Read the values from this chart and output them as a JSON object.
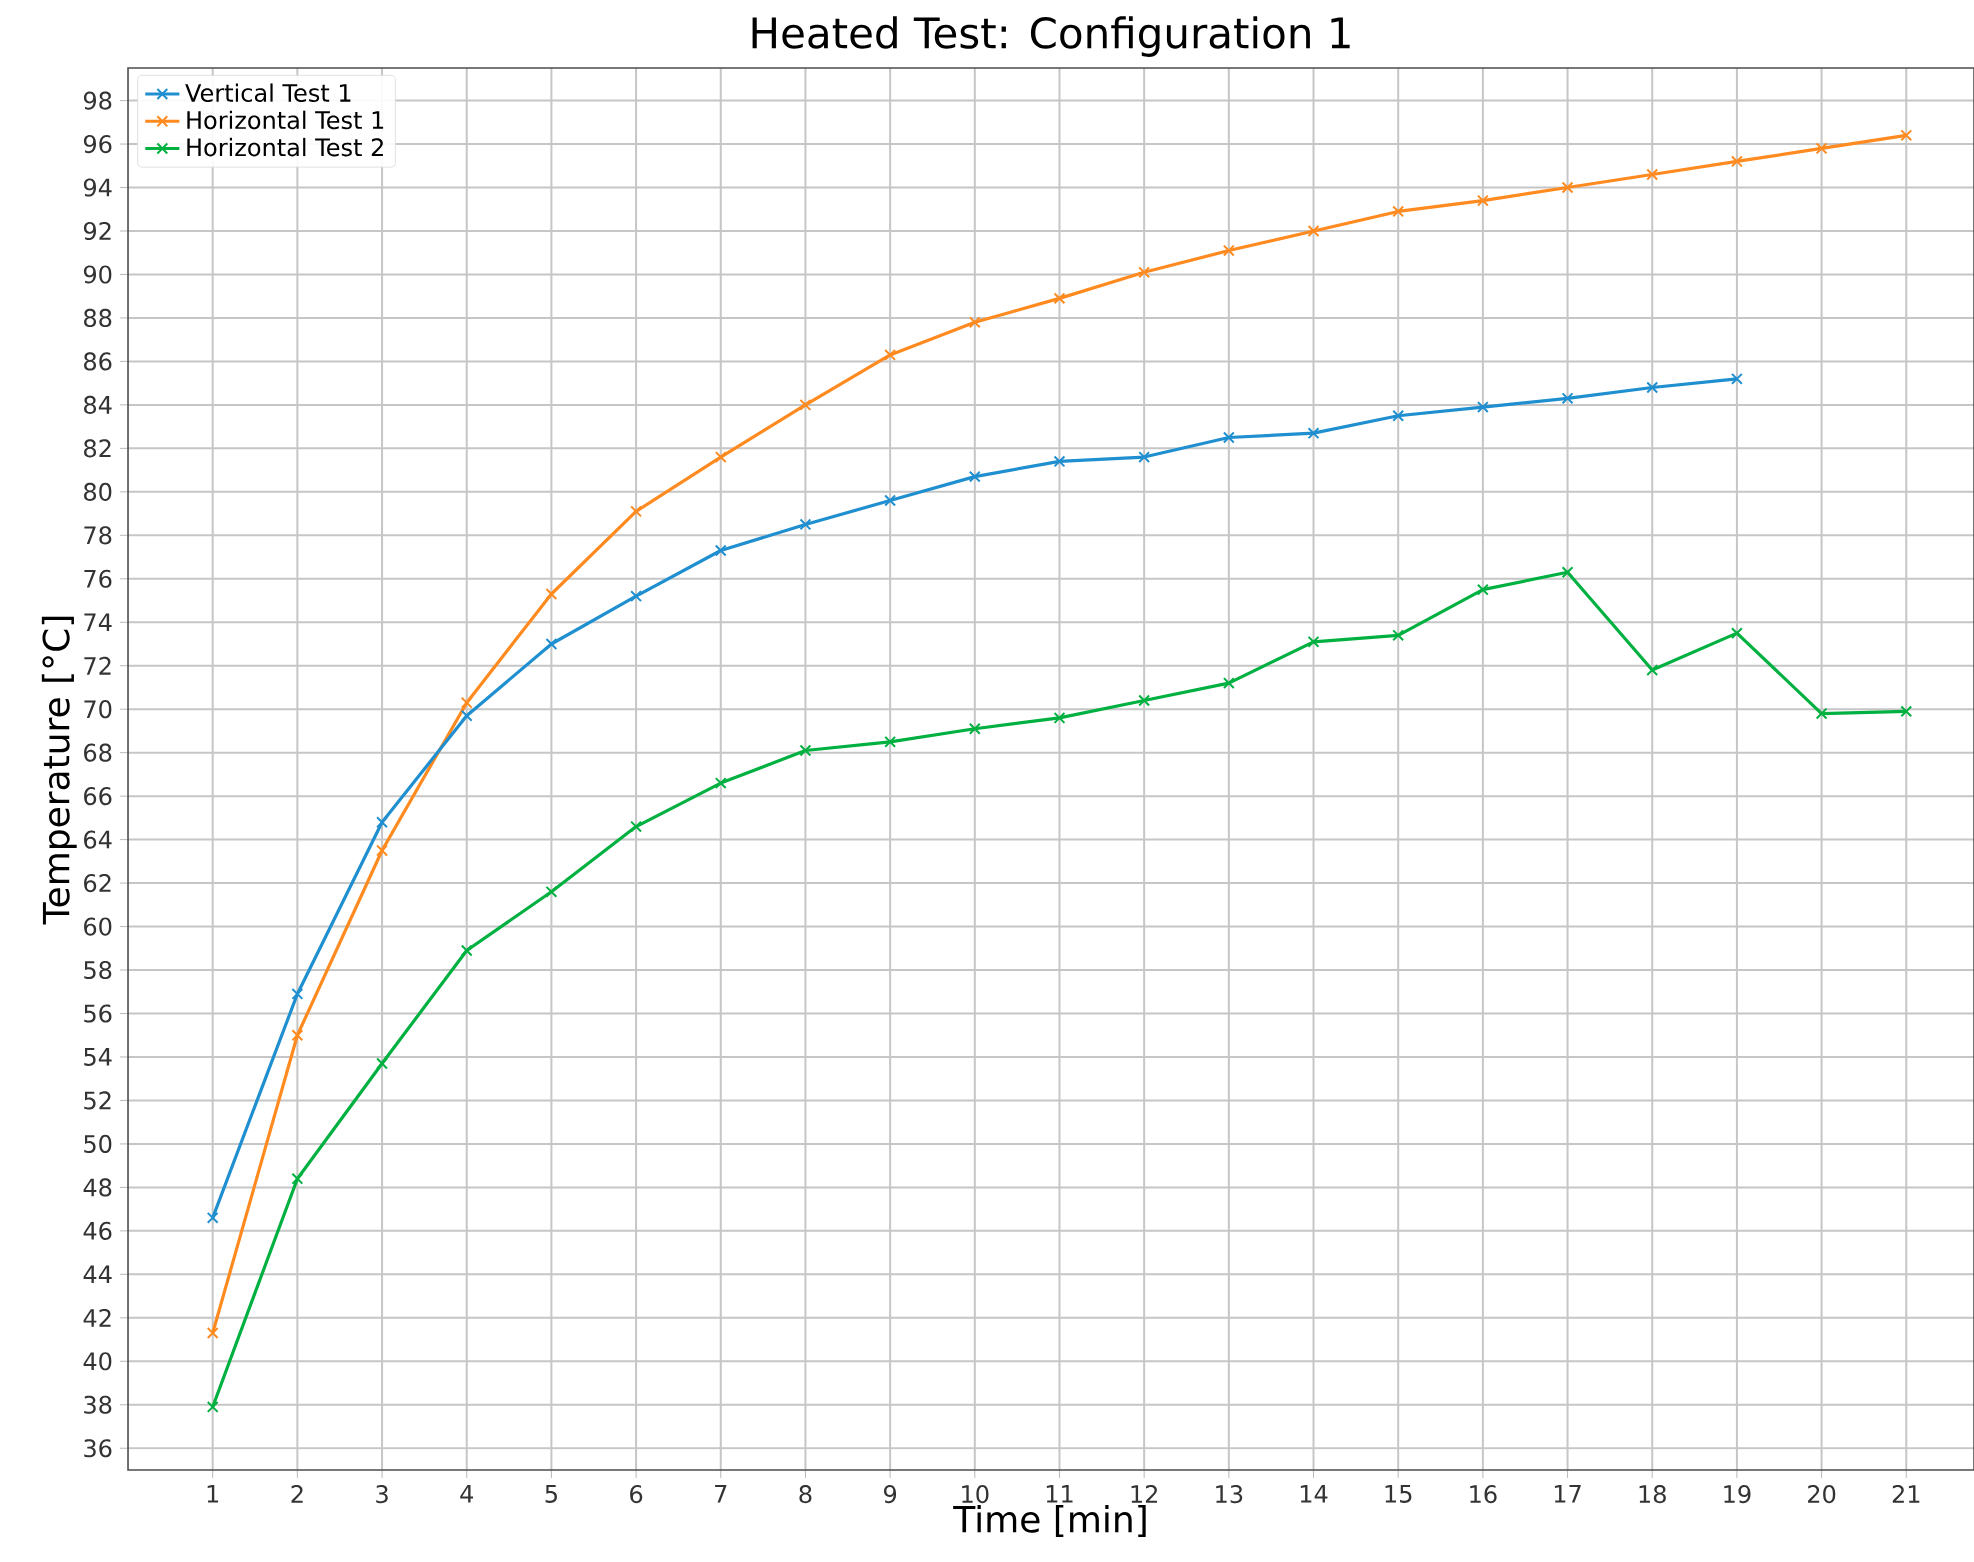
{
  "chart_data": {
    "type": "line",
    "title": "Heated Test: Configuration 1",
    "xlabel": "Time [min]",
    "ylabel": "Temperature [°C]",
    "x": [
      1,
      2,
      3,
      4,
      5,
      6,
      7,
      8,
      9,
      10,
      11,
      12,
      13,
      14,
      15,
      16,
      17,
      18,
      19,
      20,
      21
    ],
    "series": [
      {
        "name": "Vertical Test 1",
        "color": "#1f8fd0",
        "values": [
          46.6,
          56.9,
          64.8,
          69.7,
          73.0,
          75.2,
          77.3,
          78.5,
          79.6,
          80.7,
          81.4,
          81.6,
          82.5,
          82.7,
          83.5,
          83.9,
          84.3,
          84.8,
          85.2,
          null,
          null
        ]
      },
      {
        "name": "Horizontal Test 1",
        "color": "#ff8a1f",
        "values": [
          41.3,
          55.0,
          63.5,
          70.3,
          75.3,
          79.1,
          81.6,
          84.0,
          86.3,
          87.8,
          88.9,
          90.1,
          91.1,
          92.0,
          92.9,
          93.4,
          94.0,
          94.6,
          95.2,
          95.8,
          96.4
        ]
      },
      {
        "name": "Horizontal Test 2",
        "color": "#00b040",
        "values": [
          37.9,
          48.4,
          53.7,
          58.9,
          61.6,
          64.6,
          66.6,
          68.1,
          68.5,
          69.1,
          69.6,
          70.4,
          71.2,
          73.1,
          73.4,
          75.5,
          76.3,
          71.8,
          73.5,
          69.8,
          69.9
        ]
      }
    ],
    "xlim": [
      0,
      21.8
    ],
    "ylim": [
      35,
      99.5
    ],
    "xticks": [
      1,
      2,
      3,
      4,
      5,
      6,
      7,
      8,
      9,
      10,
      11,
      12,
      13,
      14,
      15,
      16,
      17,
      18,
      19,
      20,
      21
    ],
    "yticks": [
      36,
      38,
      40,
      42,
      44,
      46,
      48,
      50,
      52,
      54,
      56,
      58,
      60,
      62,
      64,
      66,
      68,
      70,
      72,
      74,
      76,
      78,
      80,
      82,
      84,
      86,
      88,
      90,
      92,
      94,
      96,
      98
    ],
    "grid": true,
    "legend": "top left",
    "marker": "cross",
    "line_style": "solid"
  }
}
